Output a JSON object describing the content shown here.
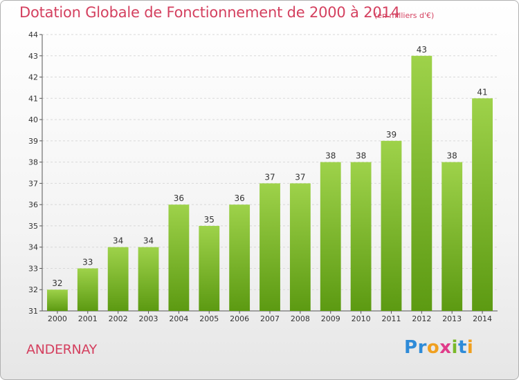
{
  "header": {
    "title": "Dotation Globale de Fonctionnement de 2000 à 2014",
    "unit": "(en milliers d'€)"
  },
  "footer": {
    "commune": "ANDERNAY",
    "logo_text": "Proxiti",
    "logo_letters": [
      {
        "ch": "P",
        "color": "#2e8bd8"
      },
      {
        "ch": "r",
        "color": "#2e8bd8"
      },
      {
        "ch": "o",
        "color": "#f0a020"
      },
      {
        "ch": "x",
        "color": "#e03c8a"
      },
      {
        "ch": "i",
        "color": "#7ab829"
      },
      {
        "ch": "t",
        "color": "#2e8bd8"
      },
      {
        "ch": "i",
        "color": "#f0a020"
      }
    ]
  },
  "colors": {
    "accent": "#d4405f",
    "bar_top": "#9ed24a",
    "bar_bottom": "#5c9a12",
    "grid": "#d8d8d8"
  },
  "chart_data": {
    "type": "bar",
    "categories": [
      "2000",
      "2001",
      "2002",
      "2003",
      "2004",
      "2005",
      "2006",
      "2007",
      "2008",
      "2009",
      "2010",
      "2011",
      "2012",
      "2013",
      "2014"
    ],
    "values": [
      32,
      33,
      34,
      34,
      36,
      35,
      36,
      37,
      37,
      38,
      38,
      39,
      43,
      38,
      41
    ],
    "ylim": [
      31,
      44
    ],
    "yticks": [
      31,
      32,
      33,
      34,
      35,
      36,
      37,
      38,
      39,
      40,
      41,
      42,
      43,
      44
    ],
    "grid": true,
    "title": "Dotation Globale de Fonctionnement de 2000 à 2014",
    "ylabel": "(en milliers d'€)",
    "xlabel": ""
  }
}
